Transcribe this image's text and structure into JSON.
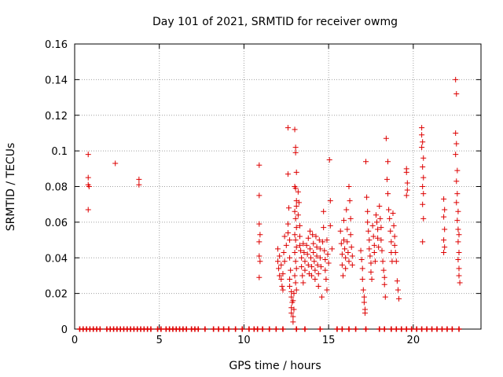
{
  "chart_data": {
    "type": "scatter",
    "title": "Day 101 of 2021, SRMTID for receiver owmg",
    "xlabel": "GPS time / hours",
    "ylabel": "SRMTID / TECUs",
    "xlim": [
      0,
      24
    ],
    "ylim": [
      0,
      0.16
    ],
    "xticks": [
      0,
      5,
      10,
      15,
      20
    ],
    "xtick_labels": [
      "0",
      "5",
      "10",
      "15",
      "20"
    ],
    "yticks": [
      0,
      0.02,
      0.04,
      0.06,
      0.08,
      0.1,
      0.12,
      0.14,
      0.16
    ],
    "ytick_labels": [
      "0",
      "0.02",
      "0.04",
      "0.06",
      "0.08",
      "0.1",
      "0.12",
      "0.14",
      "0.16"
    ],
    "grid": true,
    "marker": "+",
    "color": "#dd0000",
    "series": [
      {
        "name": "SRMTID",
        "points": [
          [
            0.8,
            0.098
          ],
          [
            0.8,
            0.085
          ],
          [
            0.8,
            0.081
          ],
          [
            0.85,
            0.08
          ],
          [
            0.8,
            0.067
          ],
          [
            2.4,
            0.093
          ],
          [
            3.8,
            0.084
          ],
          [
            3.8,
            0.081
          ],
          [
            10.9,
            0.092
          ],
          [
            10.9,
            0.075
          ],
          [
            10.9,
            0.059
          ],
          [
            10.95,
            0.053
          ],
          [
            10.9,
            0.049
          ],
          [
            10.9,
            0.041
          ],
          [
            10.95,
            0.038
          ],
          [
            10.9,
            0.029
          ],
          [
            12.0,
            0.045
          ],
          [
            12.0,
            0.038
          ],
          [
            12.05,
            0.034
          ],
          [
            12.1,
            0.03
          ],
          [
            12.1,
            0.041
          ],
          [
            12.2,
            0.036
          ],
          [
            12.2,
            0.028
          ],
          [
            12.25,
            0.024
          ],
          [
            12.3,
            0.022
          ],
          [
            12.3,
            0.031
          ],
          [
            12.35,
            0.043
          ],
          [
            12.4,
            0.052
          ],
          [
            12.4,
            0.038
          ],
          [
            12.5,
            0.047
          ],
          [
            12.6,
            0.113
          ],
          [
            12.6,
            0.087
          ],
          [
            12.65,
            0.068
          ],
          [
            12.6,
            0.059
          ],
          [
            12.6,
            0.054
          ],
          [
            12.7,
            0.05
          ],
          [
            12.7,
            0.04
          ],
          [
            12.75,
            0.033
          ],
          [
            12.7,
            0.028
          ],
          [
            12.7,
            0.024
          ],
          [
            12.8,
            0.021
          ],
          [
            12.8,
            0.018
          ],
          [
            12.85,
            0.015
          ],
          [
            12.8,
            0.012
          ],
          [
            12.8,
            0.009
          ],
          [
            12.9,
            0.007
          ],
          [
            12.9,
            0.004
          ],
          [
            12.95,
            0.011
          ],
          [
            12.9,
            0.016
          ],
          [
            12.95,
            0.02
          ],
          [
            13.0,
            0.112
          ],
          [
            13.05,
            0.102
          ],
          [
            13.05,
            0.099
          ],
          [
            13.1,
            0.088
          ],
          [
            13.0,
            0.08
          ],
          [
            13.05,
            0.079
          ],
          [
            13.1,
            0.072
          ],
          [
            13.1,
            0.069
          ],
          [
            13.0,
            0.066
          ],
          [
            13.05,
            0.062
          ],
          [
            13.1,
            0.057
          ],
          [
            13.0,
            0.053
          ],
          [
            13.05,
            0.05
          ],
          [
            13.1,
            0.046
          ],
          [
            13.0,
            0.043
          ],
          [
            13.05,
            0.038
          ],
          [
            13.1,
            0.034
          ],
          [
            13.0,
            0.03
          ],
          [
            13.05,
            0.026
          ],
          [
            13.1,
            0.022
          ],
          [
            13.2,
            0.077
          ],
          [
            13.25,
            0.071
          ],
          [
            13.2,
            0.064
          ],
          [
            13.3,
            0.058
          ],
          [
            13.3,
            0.052
          ],
          [
            13.3,
            0.047
          ],
          [
            13.35,
            0.044
          ],
          [
            13.4,
            0.04
          ],
          [
            13.4,
            0.035
          ],
          [
            13.45,
            0.03
          ],
          [
            13.5,
            0.026
          ],
          [
            13.5,
            0.048
          ],
          [
            13.55,
            0.043
          ],
          [
            13.6,
            0.038
          ],
          [
            13.6,
            0.033
          ],
          [
            13.7,
            0.047
          ],
          [
            13.75,
            0.042
          ],
          [
            13.8,
            0.051
          ],
          [
            13.8,
            0.036
          ],
          [
            13.85,
            0.031
          ],
          [
            13.9,
            0.055
          ],
          [
            13.9,
            0.045
          ],
          [
            13.95,
            0.04
          ],
          [
            14.0,
            0.035
          ],
          [
            14.0,
            0.03
          ],
          [
            14.05,
            0.053
          ],
          [
            14.1,
            0.048
          ],
          [
            14.1,
            0.043
          ],
          [
            14.15,
            0.038
          ],
          [
            14.2,
            0.033
          ],
          [
            14.2,
            0.028
          ],
          [
            14.25,
            0.052
          ],
          [
            14.3,
            0.046
          ],
          [
            14.3,
            0.041
          ],
          [
            14.35,
            0.036
          ],
          [
            14.4,
            0.031
          ],
          [
            14.4,
            0.024
          ],
          [
            14.45,
            0.05
          ],
          [
            14.5,
            0.045
          ],
          [
            14.5,
            0.04
          ],
          [
            14.55,
            0.035
          ],
          [
            14.6,
            0.018
          ],
          [
            14.65,
            0.049
          ],
          [
            14.7,
            0.066
          ],
          [
            14.7,
            0.057
          ],
          [
            14.75,
            0.044
          ],
          [
            14.8,
            0.039
          ],
          [
            14.8,
            0.033
          ],
          [
            14.85,
            0.028
          ],
          [
            14.9,
            0.022
          ],
          [
            14.9,
            0.05
          ],
          [
            14.95,
            0.042
          ],
          [
            15.0,
            0.037
          ],
          [
            15.05,
            0.095
          ],
          [
            15.1,
            0.072
          ],
          [
            15.1,
            0.058
          ],
          [
            15.2,
            0.045
          ],
          [
            15.7,
            0.055
          ],
          [
            15.75,
            0.048
          ],
          [
            15.8,
            0.042
          ],
          [
            15.8,
            0.036
          ],
          [
            15.85,
            0.03
          ],
          [
            15.9,
            0.061
          ],
          [
            15.9,
            0.05
          ],
          [
            15.95,
            0.045
          ],
          [
            16.0,
            0.04
          ],
          [
            16.0,
            0.034
          ],
          [
            16.05,
            0.067
          ],
          [
            16.1,
            0.056
          ],
          [
            16.1,
            0.049
          ],
          [
            16.15,
            0.043
          ],
          [
            16.2,
            0.038
          ],
          [
            16.2,
            0.08
          ],
          [
            16.25,
            0.072
          ],
          [
            16.3,
            0.062
          ],
          [
            16.3,
            0.053
          ],
          [
            16.35,
            0.046
          ],
          [
            16.4,
            0.041
          ],
          [
            16.4,
            0.036
          ],
          [
            16.9,
            0.044
          ],
          [
            16.95,
            0.039
          ],
          [
            17.0,
            0.034
          ],
          [
            17.0,
            0.028
          ],
          [
            17.05,
            0.022
          ],
          [
            17.1,
            0.018
          ],
          [
            17.1,
            0.015
          ],
          [
            17.15,
            0.011
          ],
          [
            17.15,
            0.009
          ],
          [
            17.2,
            0.094
          ],
          [
            17.25,
            0.074
          ],
          [
            17.3,
            0.066
          ],
          [
            17.3,
            0.06
          ],
          [
            17.35,
            0.055
          ],
          [
            17.4,
            0.05
          ],
          [
            17.4,
            0.045
          ],
          [
            17.45,
            0.041
          ],
          [
            17.5,
            0.037
          ],
          [
            17.5,
            0.032
          ],
          [
            17.55,
            0.028
          ],
          [
            17.6,
            0.058
          ],
          [
            17.65,
            0.052
          ],
          [
            17.7,
            0.047
          ],
          [
            17.7,
            0.043
          ],
          [
            17.75,
            0.038
          ],
          [
            17.8,
            0.064
          ],
          [
            17.85,
            0.06
          ],
          [
            17.9,
            0.056
          ],
          [
            17.9,
            0.051
          ],
          [
            17.95,
            0.046
          ],
          [
            18.0,
            0.069
          ],
          [
            18.05,
            0.062
          ],
          [
            18.1,
            0.057
          ],
          [
            18.1,
            0.05
          ],
          [
            18.15,
            0.044
          ],
          [
            18.2,
            0.038
          ],
          [
            18.25,
            0.033
          ],
          [
            18.3,
            0.029
          ],
          [
            18.3,
            0.025
          ],
          [
            18.35,
            0.018
          ],
          [
            18.4,
            0.107
          ],
          [
            18.45,
            0.084
          ],
          [
            18.5,
            0.094
          ],
          [
            18.5,
            0.076
          ],
          [
            18.55,
            0.067
          ],
          [
            18.6,
            0.062
          ],
          [
            18.65,
            0.055
          ],
          [
            18.7,
            0.049
          ],
          [
            18.7,
            0.043
          ],
          [
            18.75,
            0.038
          ],
          [
            18.8,
            0.065
          ],
          [
            18.85,
            0.058
          ],
          [
            18.9,
            0.052
          ],
          [
            18.9,
            0.047
          ],
          [
            18.95,
            0.043
          ],
          [
            19.0,
            0.038
          ],
          [
            19.05,
            0.027
          ],
          [
            19.1,
            0.022
          ],
          [
            19.15,
            0.017
          ],
          [
            19.6,
            0.09
          ],
          [
            19.6,
            0.088
          ],
          [
            19.65,
            0.082
          ],
          [
            19.65,
            0.078
          ],
          [
            19.6,
            0.075
          ],
          [
            20.5,
            0.113
          ],
          [
            20.5,
            0.109
          ],
          [
            20.55,
            0.105
          ],
          [
            20.5,
            0.102
          ],
          [
            20.6,
            0.096
          ],
          [
            20.55,
            0.091
          ],
          [
            20.6,
            0.085
          ],
          [
            20.55,
            0.08
          ],
          [
            20.6,
            0.076
          ],
          [
            20.55,
            0.07
          ],
          [
            20.6,
            0.062
          ],
          [
            20.55,
            0.049
          ],
          [
            21.8,
            0.073
          ],
          [
            21.85,
            0.067
          ],
          [
            21.8,
            0.063
          ],
          [
            21.85,
            0.056
          ],
          [
            21.8,
            0.05
          ],
          [
            21.85,
            0.046
          ],
          [
            21.8,
            0.043
          ],
          [
            22.5,
            0.14
          ],
          [
            22.55,
            0.132
          ],
          [
            22.5,
            0.11
          ],
          [
            22.55,
            0.104
          ],
          [
            22.5,
            0.098
          ],
          [
            22.6,
            0.089
          ],
          [
            22.55,
            0.083
          ],
          [
            22.6,
            0.076
          ],
          [
            22.55,
            0.071
          ],
          [
            22.65,
            0.066
          ],
          [
            22.6,
            0.061
          ],
          [
            22.65,
            0.056
          ],
          [
            22.7,
            0.053
          ],
          [
            22.65,
            0.049
          ],
          [
            22.7,
            0.043
          ],
          [
            22.65,
            0.039
          ],
          [
            22.7,
            0.034
          ],
          [
            22.7,
            0.03
          ],
          [
            22.75,
            0.026
          ]
        ]
      }
    ],
    "zero_value_times": [
      0.3,
      0.5,
      0.7,
      0.9,
      1.1,
      1.3,
      1.5,
      1.9,
      2.1,
      2.3,
      2.5,
      2.7,
      2.9,
      3.1,
      3.3,
      3.5,
      3.7,
      3.9,
      4.1,
      4.3,
      4.5,
      4.9,
      5.1,
      5.4,
      5.6,
      5.8,
      6.0,
      6.2,
      6.4,
      6.6,
      6.9,
      7.1,
      7.3,
      7.7,
      8.2,
      8.5,
      8.8,
      9.1,
      9.5,
      9.9,
      10.3,
      10.6,
      10.8,
      11.1,
      11.5,
      11.9,
      12.3,
      13.1,
      13.6,
      14.5,
      15.5,
      15.8,
      16.2,
      16.6,
      17.2,
      18.0,
      18.3,
      18.7,
      19.0,
      19.3,
      19.6,
      19.9,
      20.2,
      20.5,
      20.8,
      21.1,
      21.4,
      21.7,
      22.0,
      22.3,
      22.7
    ]
  }
}
